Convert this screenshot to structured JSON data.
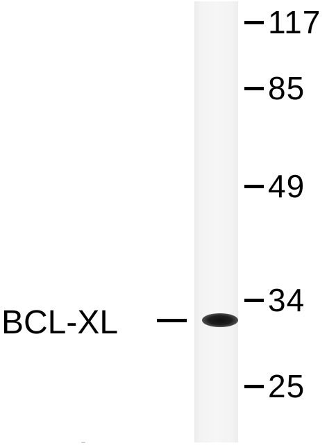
{
  "blot": {
    "protein_label": "BCL-XL",
    "markers": [
      {
        "label": "117"
      },
      {
        "label": "85"
      },
      {
        "label": "49"
      },
      {
        "label": "34"
      },
      {
        "label": "25"
      }
    ]
  },
  "colors": {
    "background": "#ffffff",
    "lane": "#f4f4f4",
    "band": "#111111",
    "text": "#000000"
  }
}
